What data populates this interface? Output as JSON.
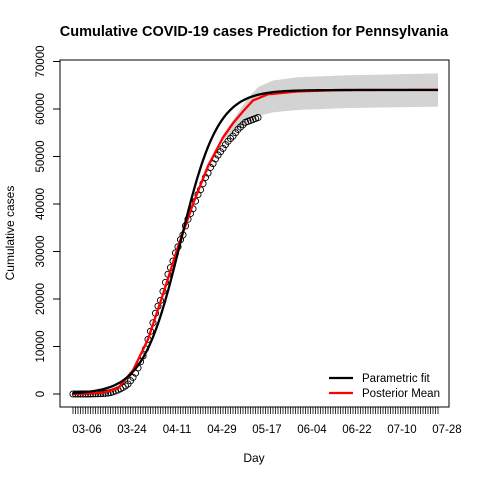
{
  "chart_data": {
    "type": "line",
    "title": "Cumulative COVID-19 cases Prediction for Pennsylvania",
    "xlabel": "Day",
    "ylabel": "Cumulative cases",
    "ylim": [
      0,
      70000
    ],
    "yticks": [
      0,
      10000,
      20000,
      30000,
      40000,
      50000,
      60000,
      70000
    ],
    "x_start": "03-06",
    "x_end": "08-04",
    "xtick_labels": [
      "03-06",
      "03-24",
      "04-11",
      "04-29",
      "05-17",
      "06-04",
      "06-22",
      "07-10",
      "07-28"
    ],
    "xtick_days": [
      0,
      18,
      36,
      54,
      72,
      90,
      108,
      126,
      144
    ],
    "observed_days": 75,
    "legend_position": "bottom-right",
    "grid": false,
    "band_color": "#d3d3d3",
    "points": {
      "name": "Observed",
      "color": "#000000",
      "values": [
        0,
        1,
        2,
        4,
        7,
        10,
        15,
        22,
        30,
        45,
        60,
        80,
        100,
        150,
        200,
        300,
        450,
        650,
        850,
        1100,
        1400,
        1700,
        2100,
        2800,
        3500,
        4400,
        5500,
        6800,
        8000,
        9500,
        11500,
        13200,
        15000,
        17000,
        18500,
        19700,
        21600,
        23500,
        25200,
        26600,
        28000,
        29700,
        31000,
        32500,
        33500,
        35400,
        36800,
        38000,
        39000,
        40600,
        42000,
        43000,
        44300,
        45600,
        46500,
        47700,
        48500,
        49500,
        50300,
        51000,
        51700,
        52500,
        53200,
        53800,
        54300,
        55000,
        55700,
        56200,
        56700,
        57200,
        57400,
        57600,
        57800,
        58000,
        58200
      ]
    },
    "series": [
      {
        "name": "Parametric fit",
        "color": "#000000",
        "model": {
          "asymptote": 64000,
          "center_day": 43,
          "scale_days": 7.5
        }
      },
      {
        "name": "Posterior Mean",
        "color": "#ff0000",
        "model": {
          "asymptote": 64000,
          "knots": [
            [
              0,
              0
            ],
            [
              12,
              250
            ],
            [
              18,
              1200
            ],
            [
              24,
              5000
            ],
            [
              30,
              11500
            ],
            [
              36,
              21000
            ],
            [
              42,
              31000
            ],
            [
              48,
              40000
            ],
            [
              54,
              48000
            ],
            [
              60,
              54000
            ],
            [
              64,
              57000
            ],
            [
              68,
              59500
            ],
            [
              72,
              61800
            ],
            [
              78,
              63100
            ],
            [
              90,
              63700
            ],
            [
              108,
              64000
            ],
            [
              146,
              64050
            ]
          ]
        },
        "band": {
          "knots": [
            [
              0,
              0,
              0
            ],
            [
              30,
              11500,
              11500
            ],
            [
              50,
              42500,
              43500
            ],
            [
              60,
              53500,
              54500
            ],
            [
              66,
              55800,
              59200
            ],
            [
              70,
              57300,
              62300
            ],
            [
              74,
              58500,
              64600
            ],
            [
              80,
              59300,
              66000
            ],
            [
              90,
              59800,
              66700
            ],
            [
              110,
              60200,
              67100
            ],
            [
              146,
              60500,
              67500
            ]
          ]
        }
      }
    ]
  }
}
